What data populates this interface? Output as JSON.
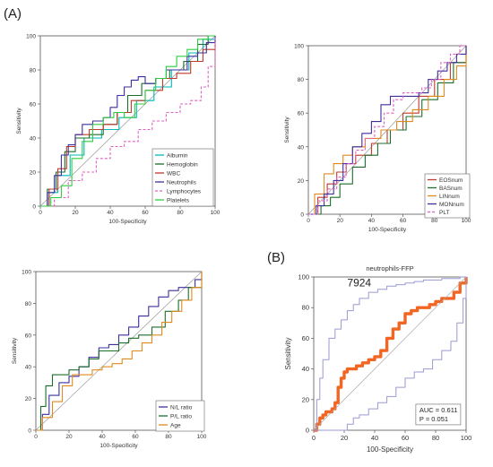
{
  "panel_labels": {
    "a": "(A)",
    "b": "(B)"
  },
  "chart_data": [
    {
      "id": "c1",
      "type": "line",
      "xlabel": "100-Specificity",
      "ylabel": "Sensitivity",
      "xlim": [
        0,
        100
      ],
      "ylim": [
        0,
        100
      ],
      "ticks": [
        0,
        20,
        40,
        60,
        80,
        100
      ],
      "legend_position": "bottom-right",
      "series": [
        {
          "name": "Albumin",
          "color": "#00b8b8",
          "dash": "",
          "x": [
            0,
            5,
            10,
            17,
            25,
            35,
            45,
            55,
            65,
            75,
            85,
            93,
            100
          ],
          "y": [
            0,
            8,
            18,
            30,
            40,
            45,
            52,
            62,
            70,
            80,
            90,
            98,
            100
          ]
        },
        {
          "name": "Hemoglobin",
          "color": "#1a6e2a",
          "dash": "",
          "x": [
            0,
            4,
            9,
            14,
            20,
            28,
            36,
            44,
            50,
            58,
            66,
            74,
            82,
            90,
            96,
            100
          ],
          "y": [
            0,
            10,
            20,
            32,
            40,
            42,
            48,
            55,
            65,
            72,
            75,
            80,
            85,
            95,
            100,
            100
          ]
        },
        {
          "name": "WBC",
          "color": "#c0392b",
          "dash": "",
          "x": [
            0,
            5,
            10,
            15,
            20,
            28,
            36,
            44,
            52,
            60,
            70,
            78,
            86,
            93,
            100
          ],
          "y": [
            0,
            10,
            22,
            35,
            42,
            45,
            48,
            55,
            62,
            68,
            75,
            78,
            85,
            92,
            100
          ]
        },
        {
          "name": "Neutrophils",
          "color": "#3d2f9e",
          "dash": "",
          "x": [
            0,
            4,
            8,
            12,
            16,
            20,
            24,
            30,
            36,
            40,
            44,
            48,
            52,
            56,
            60,
            66,
            72,
            78,
            84,
            90,
            95,
            100
          ],
          "y": [
            0,
            8,
            18,
            30,
            36,
            42,
            48,
            50,
            52,
            58,
            65,
            70,
            74,
            76,
            72,
            75,
            80,
            80,
            88,
            90,
            96,
            100
          ]
        },
        {
          "name": "Lymphocytes",
          "color": "#e060c0",
          "dash": "3,2",
          "x": [
            0,
            8,
            16,
            24,
            32,
            40,
            48,
            56,
            64,
            72,
            80,
            86,
            92,
            96,
            100
          ],
          "y": [
            0,
            5,
            15,
            20,
            28,
            35,
            38,
            45,
            50,
            55,
            60,
            62,
            70,
            82,
            100
          ]
        },
        {
          "name": "Platelets",
          "color": "#2ecc40",
          "dash": "",
          "x": [
            0,
            6,
            12,
            18,
            24,
            30,
            36,
            42,
            48,
            54,
            60,
            66,
            72,
            78,
            84,
            90,
            96,
            100
          ],
          "y": [
            0,
            5,
            12,
            28,
            38,
            48,
            52,
            55,
            52,
            60,
            68,
            75,
            82,
            88,
            92,
            98,
            100,
            100
          ]
        }
      ]
    },
    {
      "id": "c2",
      "type": "line",
      "xlabel": "100-Specificity",
      "ylabel": "Sensitivity",
      "xlim": [
        0,
        100
      ],
      "ylim": [
        0,
        100
      ],
      "ticks": [
        0,
        20,
        40,
        60,
        80,
        100
      ],
      "legend_position": "bottom-right",
      "series": [
        {
          "name": "EOSnum",
          "color": "#c0392b",
          "dash": "",
          "x": [
            0,
            6,
            12,
            18,
            24,
            30,
            40,
            50,
            60,
            70,
            80,
            90,
            100
          ],
          "y": [
            0,
            10,
            18,
            25,
            30,
            35,
            42,
            50,
            60,
            70,
            80,
            90,
            100
          ]
        },
        {
          "name": "BASnum",
          "color": "#1a6e2a",
          "dash": "",
          "x": [
            0,
            8,
            14,
            20,
            28,
            36,
            44,
            52,
            62,
            72,
            82,
            92,
            100
          ],
          "y": [
            0,
            5,
            10,
            18,
            28,
            35,
            42,
            50,
            58,
            68,
            78,
            90,
            100
          ]
        },
        {
          "name": "LINnum",
          "color": "#e08a1e",
          "dash": "",
          "x": [
            0,
            4,
            10,
            16,
            22,
            28,
            36,
            46,
            56,
            66,
            76,
            86,
            94,
            100
          ],
          "y": [
            0,
            12,
            24,
            30,
            35,
            40,
            45,
            50,
            55,
            62,
            70,
            80,
            88,
            100
          ]
        },
        {
          "name": "MONnum",
          "color": "#3d2f9e",
          "dash": "",
          "x": [
            0,
            5,
            10,
            16,
            22,
            28,
            34,
            40,
            46,
            52,
            58,
            64,
            70,
            76,
            82,
            88,
            94,
            100
          ],
          "y": [
            0,
            5,
            12,
            20,
            30,
            40,
            48,
            55,
            65,
            70,
            70,
            70,
            72,
            80,
            85,
            90,
            95,
            100
          ]
        },
        {
          "name": "PLT",
          "color": "#e060c0",
          "dash": "3,2",
          "x": [
            0,
            6,
            12,
            18,
            24,
            30,
            36,
            42,
            48,
            54,
            60,
            66,
            72,
            78,
            84,
            90,
            96,
            100
          ],
          "y": [
            0,
            8,
            15,
            22,
            30,
            38,
            45,
            52,
            60,
            68,
            72,
            72,
            75,
            80,
            90,
            95,
            100,
            100
          ]
        }
      ]
    },
    {
      "id": "c3",
      "type": "line",
      "xlabel": "100-Specificity",
      "ylabel": "Sensitivity",
      "xlim": [
        0,
        100
      ],
      "ylim": [
        0,
        100
      ],
      "ticks": [
        0,
        20,
        40,
        60,
        80,
        100
      ],
      "legend_position": "bottom-right",
      "series": [
        {
          "name": "N/L ratio",
          "color": "#3d2f9e",
          "dash": "",
          "x": [
            0,
            4,
            8,
            14,
            20,
            26,
            32,
            38,
            44,
            50,
            56,
            62,
            68,
            74,
            80,
            86,
            92,
            96,
            100
          ],
          "y": [
            0,
            10,
            22,
            30,
            34,
            40,
            46,
            52,
            54,
            60,
            65,
            72,
            78,
            84,
            88,
            90,
            90,
            95,
            100
          ]
        },
        {
          "name": "P/L ratio",
          "color": "#1a6e2a",
          "dash": "",
          "x": [
            0,
            3,
            6,
            10,
            14,
            20,
            26,
            32,
            38,
            44,
            50,
            56,
            62,
            70,
            78,
            86,
            92,
            100
          ],
          "y": [
            0,
            15,
            28,
            35,
            35,
            38,
            40,
            45,
            50,
            50,
            55,
            58,
            60,
            65,
            75,
            82,
            90,
            100
          ]
        },
        {
          "name": "Age",
          "color": "#e08a1e",
          "dash": "",
          "x": [
            0,
            4,
            10,
            16,
            22,
            28,
            34,
            40,
            46,
            52,
            58,
            64,
            70,
            76,
            82,
            88,
            94,
            100
          ],
          "y": [
            0,
            8,
            18,
            28,
            35,
            35,
            38,
            40,
            42,
            45,
            50,
            55,
            60,
            68,
            75,
            82,
            90,
            100
          ]
        }
      ]
    },
    {
      "id": "c4",
      "type": "line",
      "title": "neutrophils-FFP",
      "xlabel": "100-Specificity",
      "ylabel": "Sensitivity",
      "xlim": [
        0,
        100
      ],
      "ylim": [
        0,
        100
      ],
      "ticks": [
        0,
        20,
        40,
        60,
        80,
        100
      ],
      "annotation": "7924",
      "auc_text": "AUC = 0.611",
      "p_text": "P = 0.051",
      "series": [
        {
          "name": "",
          "color": "#f26522",
          "dash": "",
          "role": "roc",
          "x": [
            0,
            2,
            4,
            6,
            8,
            10,
            12,
            14,
            16,
            18,
            20,
            22,
            24,
            28,
            32,
            36,
            40,
            44,
            48,
            52,
            56,
            60,
            64,
            68,
            72,
            76,
            80,
            84,
            88,
            92,
            96,
            100
          ],
          "y": [
            0,
            4,
            8,
            10,
            12,
            12,
            14,
            18,
            28,
            34,
            38,
            40,
            40,
            42,
            44,
            46,
            48,
            52,
            60,
            66,
            70,
            76,
            78,
            80,
            80,
            82,
            84,
            86,
            86,
            90,
            96,
            100
          ]
        },
        {
          "name": "",
          "color": "#9a9ad0",
          "dash": "",
          "role": "upper-ci",
          "x": [
            0,
            2,
            4,
            6,
            10,
            14,
            18,
            22,
            26,
            30,
            36,
            42,
            48,
            54,
            60,
            66,
            72,
            78,
            84,
            90,
            96,
            100
          ],
          "y": [
            0,
            20,
            34,
            46,
            60,
            66,
            72,
            78,
            82,
            86,
            90,
            92,
            94,
            95,
            96,
            97,
            98,
            98,
            99,
            99,
            100,
            100
          ]
        },
        {
          "name": "",
          "color": "#9a9ad0",
          "dash": "",
          "role": "lower-ci",
          "x": [
            0,
            6,
            12,
            18,
            22,
            26,
            30,
            36,
            42,
            48,
            54,
            60,
            66,
            72,
            78,
            84,
            90,
            94,
            98,
            100
          ],
          "y": [
            0,
            0,
            0,
            0,
            4,
            8,
            10,
            14,
            18,
            22,
            28,
            34,
            38,
            40,
            46,
            52,
            58,
            70,
            86,
            100
          ]
        },
        {
          "name": "",
          "color": "#aaaaaa",
          "dash": "",
          "role": "reference",
          "x": [
            0,
            100
          ],
          "y": [
            0,
            100
          ]
        }
      ]
    }
  ]
}
